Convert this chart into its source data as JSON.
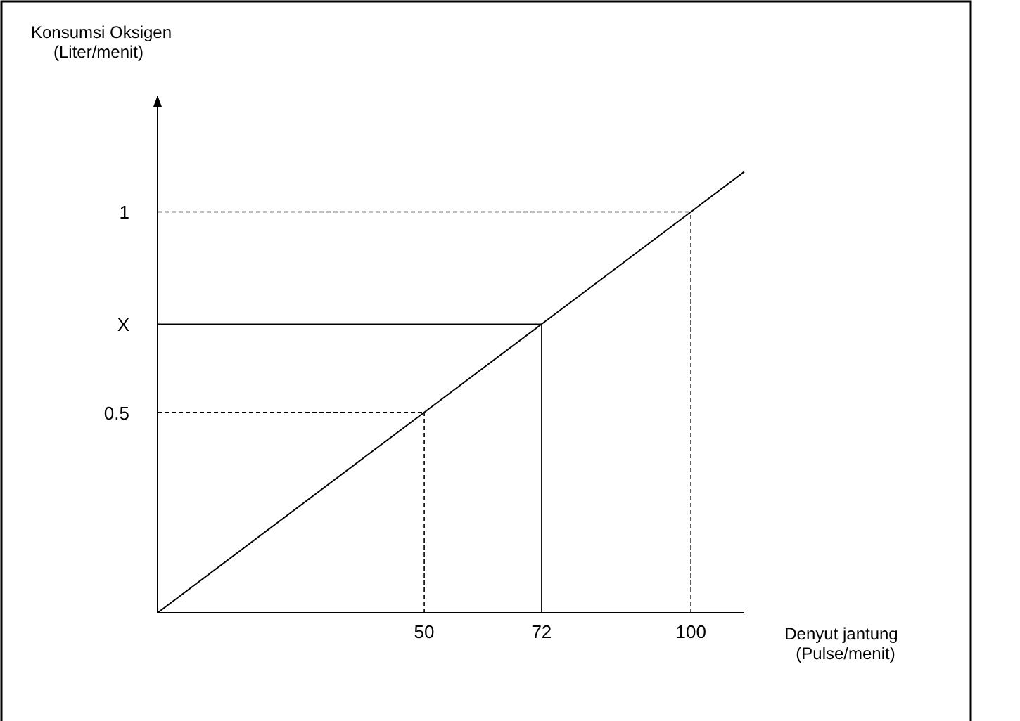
{
  "chart_data": {
    "type": "line",
    "xlabel": "Denyut jantung\n(Pulse/menit)",
    "ylabel": "Konsumsi Oksigen\n(Liter/menit)",
    "series": [
      {
        "color": "#000000",
        "x": [
          0,
          50,
          72,
          100,
          110
        ],
        "values": [
          0,
          0.5,
          0.72,
          1,
          1.1
        ]
      }
    ],
    "xlim": [
      0,
      110
    ],
    "ylim": [
      0,
      1.29
    ],
    "xticks": [
      50,
      72,
      100
    ],
    "yticks": [
      0.5,
      {
        "value": 0.72,
        "label": "X"
      },
      1
    ],
    "ref_lines": [
      {
        "axis": "x",
        "value": 50,
        "line_style": "dashed"
      },
      {
        "axis": "y",
        "value": 0.5,
        "line_style": "dashed"
      },
      {
        "axis": "x",
        "value": 72,
        "line_style": "solid"
      },
      {
        "axis": "y",
        "value": 0.72,
        "line_style": "solid"
      },
      {
        "axis": "x",
        "value": 100,
        "line_style": "dashed"
      },
      {
        "axis": "y",
        "value": 1,
        "line_style": "dashed"
      }
    ],
    "grid": false,
    "line_style": "solid"
  }
}
